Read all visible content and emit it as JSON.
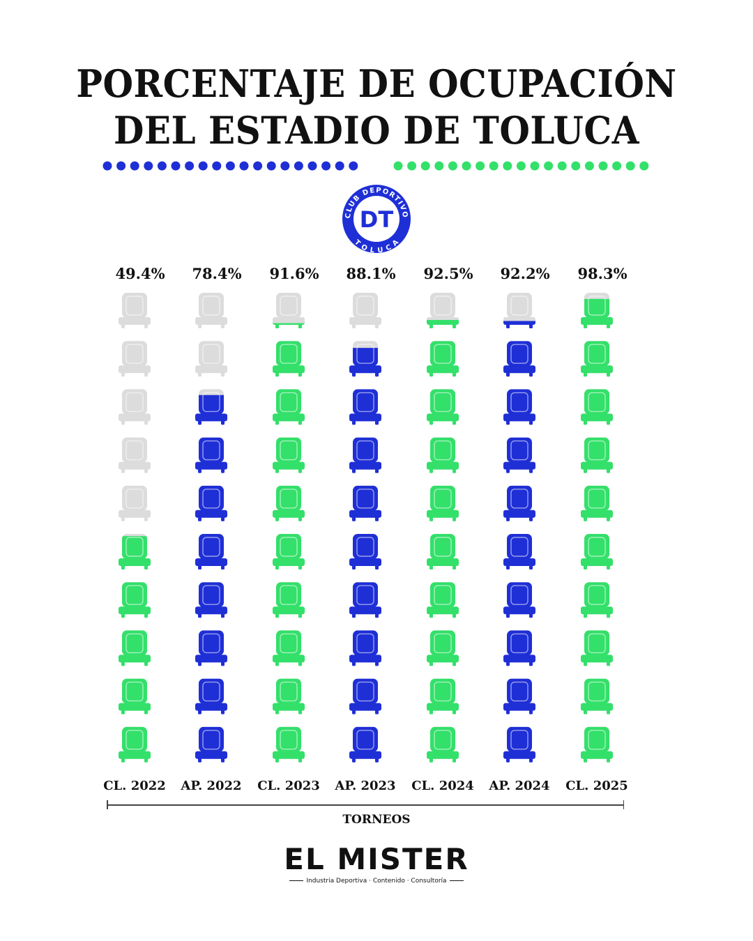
{
  "title": {
    "line1": "PORCENTAJE DE OCUPACIÓN",
    "line2": "DEL ESTADIO DE TOLUCA"
  },
  "logo": {
    "ring_text_top": "CLUB DEPORTIVO",
    "ring_text_bottom": "T O L U C A",
    "monogram": "DT"
  },
  "colors": {
    "blue": "#1f2fd6",
    "green": "#33e06a",
    "empty": "#dcdcdc"
  },
  "chart_data": {
    "type": "pictograph",
    "title": "PORCENTAJE DE OCUPACIÓN DEL ESTADIO DE TOLUCA",
    "xlabel": "TORNEOS",
    "ylabel": "",
    "units_per_icon": 10,
    "icons_per_column": 10,
    "categories": [
      "CL. 2022",
      "AP. 2022",
      "CL. 2023",
      "AP. 2023",
      "CL. 2024",
      "AP. 2024",
      "CL. 2025"
    ],
    "values": [
      49.4,
      78.4,
      91.6,
      88.1,
      92.5,
      92.2,
      98.3
    ],
    "value_labels": [
      "49.4%",
      "78.4%",
      "91.6%",
      "88.1%",
      "92.5%",
      "92.2%",
      "98.3%"
    ],
    "fill_colors": [
      "green",
      "blue",
      "green",
      "blue",
      "green",
      "blue",
      "green"
    ],
    "ylim": [
      0,
      100
    ]
  },
  "footer": {
    "axis_title": "TORNEOS",
    "brand": "EL MISTER",
    "tagline": "Industria Deportiva · Contenido · Consultoría"
  }
}
